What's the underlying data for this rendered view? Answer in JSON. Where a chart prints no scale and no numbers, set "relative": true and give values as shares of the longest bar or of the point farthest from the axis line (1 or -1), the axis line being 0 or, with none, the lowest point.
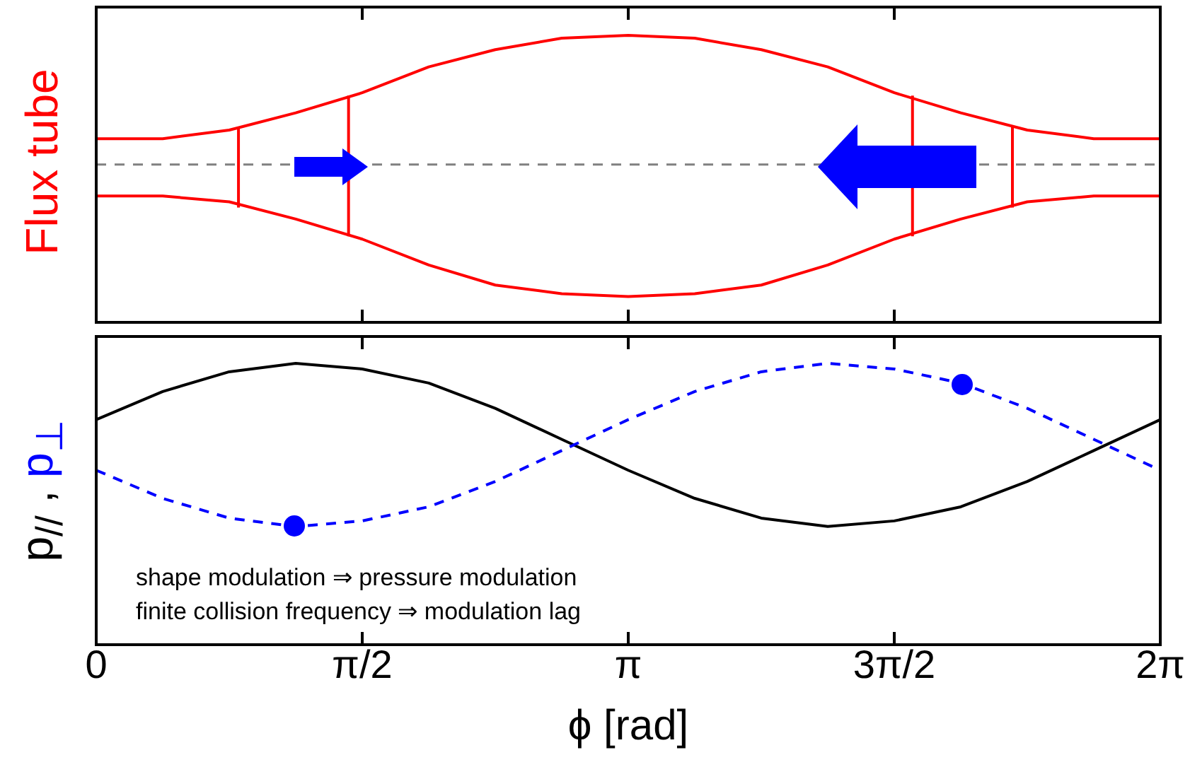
{
  "chart_data": [
    {
      "type": "line",
      "relative": true,
      "ylabel": "Flux tube",
      "xlim": [
        0,
        6.2832
      ],
      "tick_labels": false,
      "marker": "none",
      "xticks": [
        {
          "value": 0,
          "label": null
        },
        {
          "value": 1.5708,
          "label": null
        },
        {
          "value": 3.1416,
          "label": null
        },
        {
          "value": 4.7124,
          "label": null
        },
        {
          "value": 6.2832,
          "label": null
        }
      ],
      "ref_lines": [
        {
          "axis": "y",
          "value": 0.55,
          "color": "#808080",
          "line_style": "dashed"
        }
      ],
      "series": [
        {
          "color": "#ff0000",
          "x": [
            0,
            0.3927,
            0.7854,
            1.1781,
            1.5708,
            1.9635,
            2.3562,
            2.7489,
            3.1416,
            3.5343,
            3.927,
            4.3197,
            4.7124,
            5.1051,
            5.4978,
            5.8905,
            6.2832
          ],
          "values": [
            0.64,
            0.64,
            0.67,
            0.73,
            0.8,
            0.89,
            0.95,
            0.99,
            1,
            0.99,
            0.95,
            0.89,
            0.8,
            0.73,
            0.67,
            0.64,
            0.64
          ]
        },
        {
          "color": "#ff0000",
          "x": [
            0,
            0.3927,
            0.7854,
            1.1781,
            1.5708,
            1.9635,
            2.3562,
            2.7489,
            3.1416,
            3.5343,
            3.927,
            4.3197,
            4.7124,
            5.1051,
            5.4978,
            5.8905,
            6.2832
          ],
          "values": [
            0.44,
            0.44,
            0.42,
            0.36,
            0.29,
            0.2,
            0.13,
            0.1,
            0.09,
            0.1,
            0.13,
            0.2,
            0.29,
            0.36,
            0.42,
            0.44,
            0.44
          ]
        },
        {
          "color": "#ff0000",
          "x": [
            0.84,
            0.84
          ],
          "values": [
            0.4,
            0.68
          ]
        },
        {
          "color": "#ff0000",
          "x": [
            1.49,
            1.49
          ],
          "values": [
            0.3,
            0.79
          ]
        },
        {
          "color": "#ff0000",
          "x": [
            4.82,
            4.82
          ],
          "values": [
            0.3,
            0.79
          ]
        },
        {
          "color": "#ff0000",
          "x": [
            5.41,
            5.41
          ],
          "values": [
            0.4,
            0.68
          ]
        }
      ]
    },
    {
      "type": "line",
      "relative": true,
      "ylabel": "p$_{//}$ , p$_{⊥}$",
      "xlabel": "ϕ [rad]",
      "xlim": [
        0,
        6.2832
      ],
      "marker": "none",
      "xticks": [
        {
          "value": 0,
          "label": "0"
        },
        {
          "value": 1.5708,
          "label": "π/2"
        },
        {
          "value": 3.1416,
          "label": "π"
        },
        {
          "value": 4.7124,
          "label": "3π/2"
        },
        {
          "value": 6.2832,
          "label": "2π"
        }
      ],
      "annotations": [
        "shape modulation ⇒ pressure modulation",
        "finite collision frequency ⇒ modulation lag"
      ],
      "series": [
        {
          "color": "#000000",
          "x": [
            0,
            0.3927,
            0.7854,
            1.1781,
            1.5708,
            1.9635,
            2.3562,
            2.7489,
            3.1416,
            3.5343,
            3.927,
            4.3197,
            4.7124,
            5.1051,
            5.4978,
            5.8905,
            6.2832
          ],
          "values": [
            0.8,
            0.9,
            0.97,
            1,
            0.98,
            0.93,
            0.84,
            0.73,
            0.62,
            0.52,
            0.45,
            0.42,
            0.44,
            0.49,
            0.58,
            0.69,
            0.8
          ]
        },
        {
          "color": "#0000ff",
          "line_style": "dashed",
          "x": [
            0,
            0.3927,
            0.7854,
            1.1781,
            1.5708,
            1.9635,
            2.3562,
            2.7489,
            3.1416,
            3.5343,
            3.927,
            4.3197,
            4.7124,
            5.1051,
            5.4978,
            5.8905,
            6.2832
          ],
          "values": [
            0.62,
            0.52,
            0.45,
            0.42,
            0.44,
            0.49,
            0.58,
            0.69,
            0.8,
            0.9,
            0.97,
            1,
            0.98,
            0.93,
            0.84,
            0.73,
            0.62
          ]
        }
      ]
    }
  ]
}
